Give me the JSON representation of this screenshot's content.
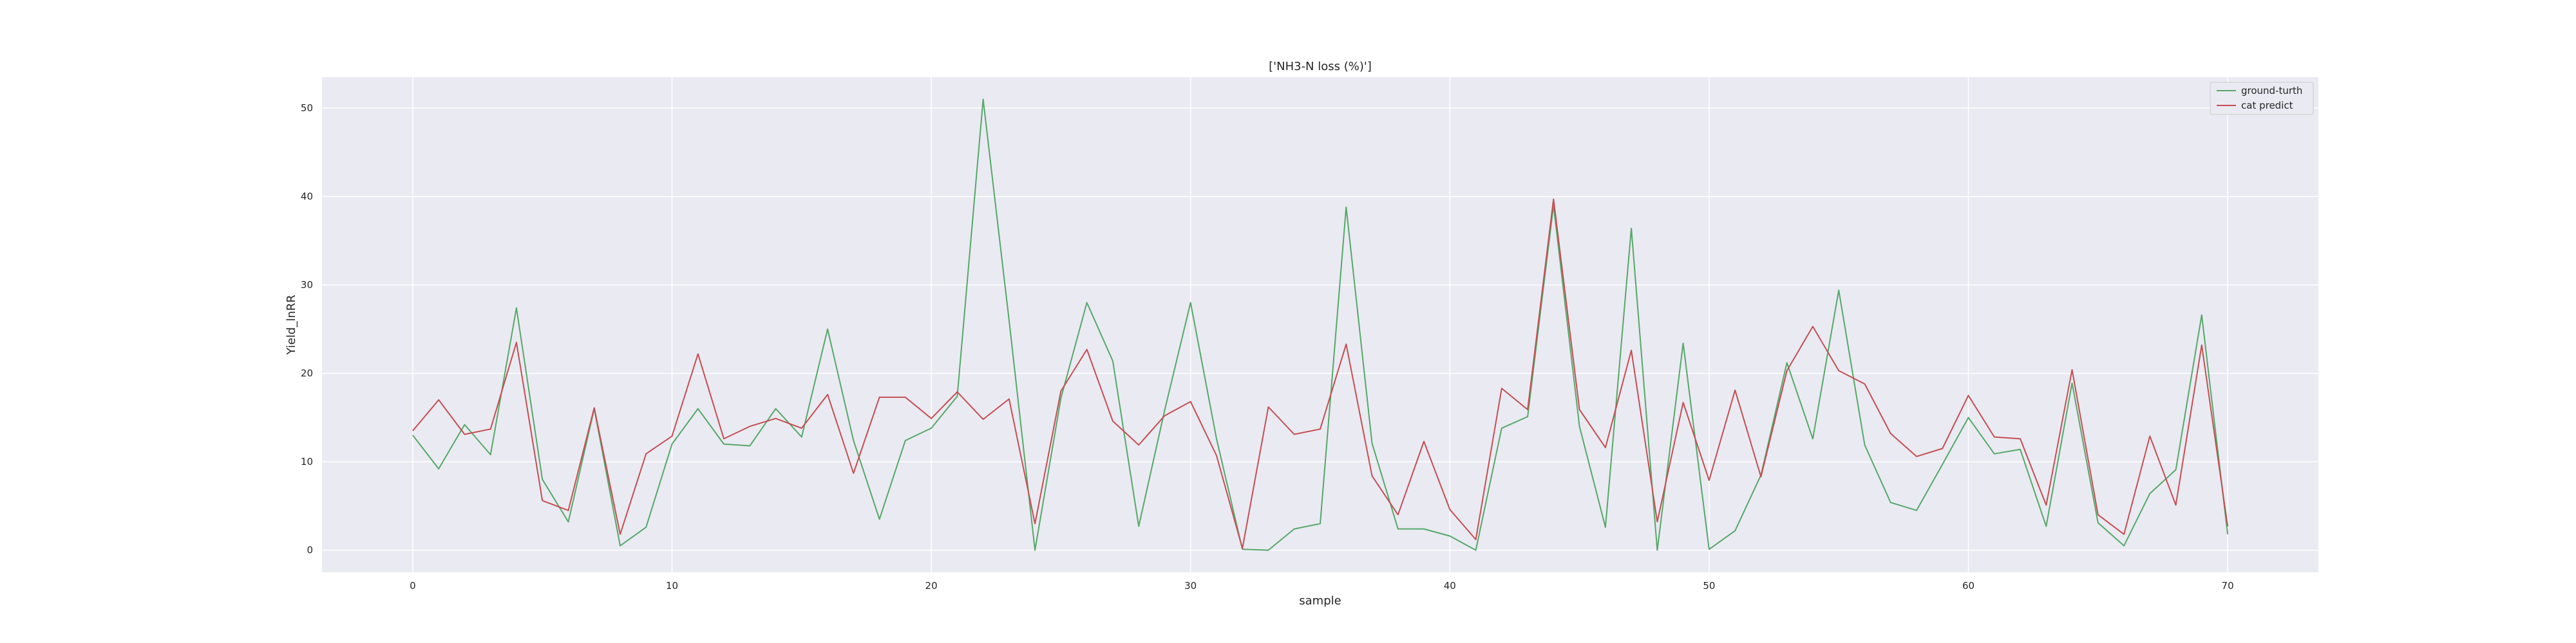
{
  "chart_data": {
    "type": "line",
    "title": "['NH3-N loss (%)']",
    "xlabel": "sample",
    "ylabel": "Yield_lnRR",
    "xlim": [
      -3.5,
      73.5
    ],
    "ylim": [
      -2.5,
      53.5
    ],
    "xticks": [
      0,
      10,
      20,
      30,
      40,
      50,
      60,
      70
    ],
    "yticks": [
      0,
      10,
      20,
      30,
      40,
      50
    ],
    "grid": true,
    "legend": "top-right",
    "x": [
      0,
      1,
      2,
      3,
      4,
      5,
      6,
      7,
      8,
      9,
      10,
      11,
      12,
      13,
      14,
      15,
      16,
      17,
      18,
      19,
      20,
      21,
      22,
      23,
      24,
      25,
      26,
      27,
      28,
      29,
      30,
      31,
      32,
      33,
      34,
      35,
      36,
      37,
      38,
      39,
      40,
      41,
      42,
      43,
      44,
      45,
      46,
      47,
      48,
      49,
      50,
      51,
      52,
      53,
      54,
      55,
      56,
      57,
      58,
      59,
      60,
      61,
      62,
      63,
      64,
      65,
      66,
      67,
      68,
      69,
      70
    ],
    "series": [
      {
        "name": "ground-turth",
        "color": "#55a868",
        "values": [
          13,
          9.2,
          14.2,
          10.8,
          27.4,
          8,
          3.2,
          16,
          0.5,
          2.6,
          12,
          16,
          12,
          11.8,
          16,
          12.8,
          25,
          12.4,
          3.5,
          12.4,
          13.8,
          17.4,
          51,
          26,
          0,
          17.2,
          28,
          21.4,
          2.7,
          15.8,
          28,
          12.6,
          0.1,
          0,
          2.4,
          3,
          38.8,
          12.1,
          2.4,
          2.4,
          1.6,
          0,
          13.8,
          15.1,
          39,
          14,
          2.6,
          36.4,
          0,
          23.4,
          0.1,
          2.2,
          8.5,
          21.2,
          12.6,
          29.4,
          11.9,
          5.4,
          4.5,
          9.7,
          15,
          10.9,
          11.4,
          2.7,
          18.9,
          3.1,
          0.5,
          6.4,
          9.1,
          26.6,
          1.8
        ]
      },
      {
        "name": "cat predict",
        "color": "#c44e52",
        "values": [
          13.5,
          17,
          13.1,
          13.7,
          23.5,
          5.6,
          4.5,
          16.1,
          1.8,
          10.9,
          12.9,
          22.2,
          12.6,
          14,
          14.9,
          13.8,
          17.6,
          8.7,
          17.3,
          17.3,
          14.9,
          17.9,
          14.8,
          17.1,
          3,
          18,
          22.7,
          14.6,
          11.9,
          15.2,
          16.8,
          10.7,
          0.2,
          16.2,
          13.1,
          13.7,
          23.3,
          8.4,
          4,
          12.3,
          4.6,
          1.2,
          18.3,
          15.9,
          39.7,
          15.9,
          11.6,
          22.6,
          3.2,
          16.7,
          7.9,
          18.1,
          8.3,
          20.3,
          25.3,
          20.3,
          18.8,
          13.2,
          10.6,
          11.5,
          17.5,
          12.8,
          12.6,
          5.1,
          20.4,
          4,
          1.8,
          12.9,
          5.1,
          23.2,
          2.7
        ]
      }
    ]
  }
}
